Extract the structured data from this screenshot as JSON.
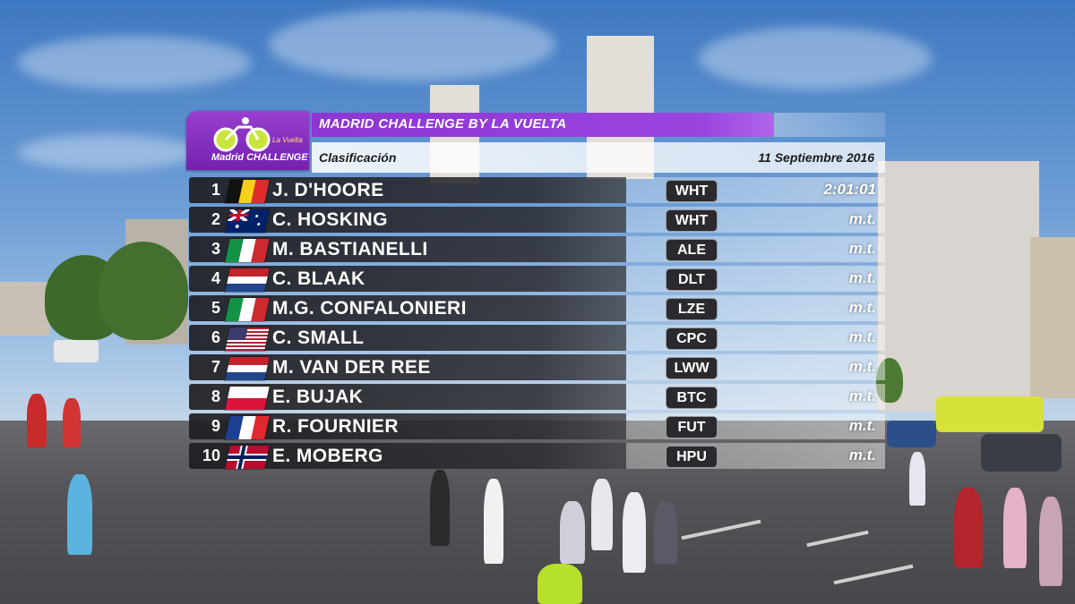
{
  "header": {
    "title": "MADRID CHALLENGE BY LA VUELTA",
    "subtitle": "Clasificación",
    "date": "11 Septiembre 2016"
  },
  "logo": {
    "brand": "Madrid CHALLENGE",
    "sub": "La Vuelta",
    "icon": "cyclist-logo-icon",
    "color": "#8b2fc9"
  },
  "results": [
    {
      "pos": "1",
      "name": "J. D'HOORE",
      "team": "WHT",
      "time": "2:01:01",
      "flag": "belgium-flag-icon"
    },
    {
      "pos": "2",
      "name": "C. HOSKING",
      "team": "WHT",
      "time": "m.t.",
      "flag": "australia-flag-icon"
    },
    {
      "pos": "3",
      "name": "M. BASTIANELLI",
      "team": "ALE",
      "time": "m.t.",
      "flag": "italy-flag-icon"
    },
    {
      "pos": "4",
      "name": "C. BLAAK",
      "team": "DLT",
      "time": "m.t.",
      "flag": "netherlands-flag-icon"
    },
    {
      "pos": "5",
      "name": "M.G. CONFALONIERI",
      "team": "LZE",
      "time": "m.t.",
      "flag": "italy-flag-icon"
    },
    {
      "pos": "6",
      "name": "C. SMALL",
      "team": "CPC",
      "time": "m.t.",
      "flag": "usa-flag-icon"
    },
    {
      "pos": "7",
      "name": "M. VAN DER REE",
      "team": "LWW",
      "time": "m.t.",
      "flag": "netherlands-flag-icon"
    },
    {
      "pos": "8",
      "name": "E. BUJAK",
      "team": "BTC",
      "time": "m.t.",
      "flag": "poland-flag-icon"
    },
    {
      "pos": "9",
      "name": "R. FOURNIER",
      "team": "FUT",
      "time": "m.t.",
      "flag": "france-flag-icon"
    },
    {
      "pos": "10",
      "name": "E. MOBERG",
      "team": "HPU",
      "time": "m.t.",
      "flag": "norway-flag-icon"
    }
  ],
  "colors": {
    "accent_purple": "#8e35d2",
    "row_dark": "#2d2d32"
  }
}
